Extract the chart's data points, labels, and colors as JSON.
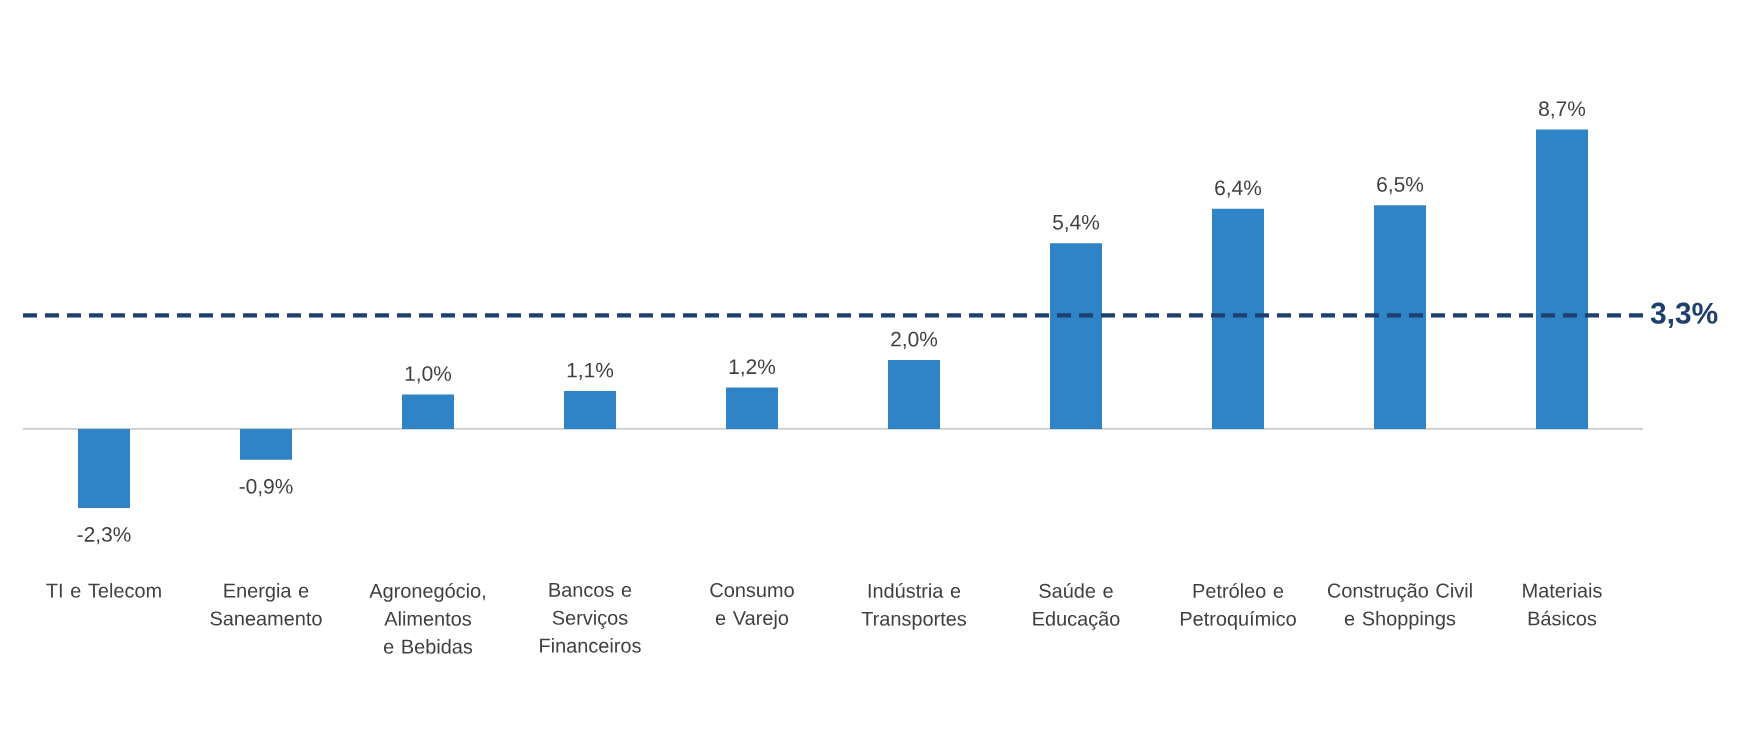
{
  "chart_data": {
    "type": "bar",
    "categories": [
      "TI e Telecom",
      "Energia e Saneamento",
      "Agronegócio, Alimentos e Bebidas",
      "Bancos e Serviços Financeiros",
      "Consumo e Varejo",
      "Indústria e Transportes",
      "Saúde e Educação",
      "Petróleo e Petroquímico",
      "Construção Civil e Shoppings",
      "Materiais Básicos"
    ],
    "values": [
      -2.3,
      -0.9,
      1.0,
      1.1,
      1.2,
      2.0,
      5.4,
      6.4,
      6.5,
      8.7
    ],
    "value_labels": [
      "-2,3%",
      "-0,9%",
      "1,0%",
      "1,1%",
      "1,2%",
      "2,0%",
      "5,4%",
      "6,4%",
      "6,5%",
      "8,7%"
    ],
    "color": "#2e84c6",
    "ref_lines": [
      {
        "axis": "y",
        "value": 3.3,
        "label": "3,3%",
        "color": "#1f3f6e",
        "line_style": "dashed"
      }
    ]
  }
}
